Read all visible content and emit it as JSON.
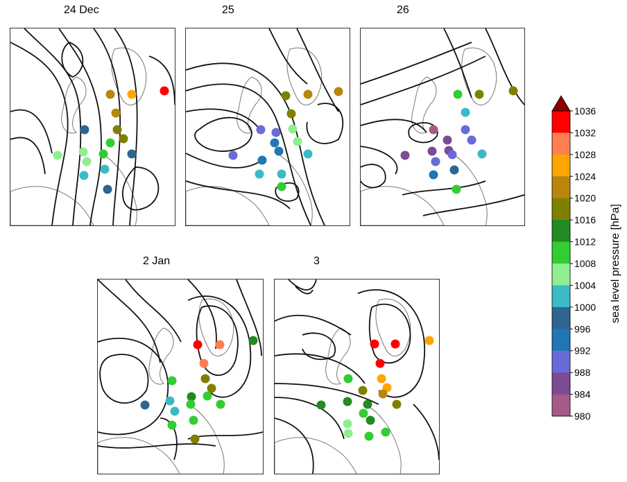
{
  "panels": [
    {
      "title": "24 Dec",
      "stations": [
        {
          "v": 1024
        },
        {
          "v": 1028
        },
        {
          "v": 1036
        },
        {
          "v": 1024
        },
        {
          "v": 1000
        },
        {
          "v": 1020
        },
        {
          "v": 1020
        },
        {
          "v": 1012
        },
        {
          "v": 1008
        },
        {
          "v": 1012
        },
        {
          "v": 1008
        },
        {
          "v": 1000
        },
        {
          "v": 1008
        },
        {
          "v": 1004
        },
        {
          "v": 1004
        },
        {
          "v": 1000
        }
      ]
    },
    {
      "title": "25",
      "stations": [
        {
          "v": 1020
        },
        {
          "v": 1024
        },
        {
          "v": 1024
        },
        {
          "v": 1020
        },
        {
          "v": 992
        },
        {
          "v": 1008
        },
        {
          "v": 992
        },
        {
          "v": 1008
        },
        {
          "v": 996
        },
        {
          "v": 996
        },
        {
          "v": 996
        },
        {
          "v": 992
        },
        {
          "v": 1004
        },
        {
          "v": 1004
        },
        {
          "v": 1004
        },
        {
          "v": 1012
        }
      ]
    },
    {
      "title": "26",
      "stations": [
        {
          "v": 1012
        },
        {
          "v": 1020
        },
        {
          "v": 1020
        },
        {
          "v": 1004
        },
        {
          "v": 984
        },
        {
          "v": 992
        },
        {
          "v": 992
        },
        {
          "v": 988
        },
        {
          "v": 988
        },
        {
          "v": 988
        },
        {
          "v": 988
        },
        {
          "v": 992
        },
        {
          "v": 1004
        },
        {
          "v": 992
        },
        {
          "v": 1000
        },
        {
          "v": 1012
        },
        {
          "v": 996
        }
      ]
    },
    {
      "title": "2 Jan",
      "stations": [
        {
          "v": 1036
        },
        {
          "v": 1032
        },
        {
          "v": 1016
        },
        {
          "v": 1032
        },
        {
          "v": 1020
        },
        {
          "v": 1012
        },
        {
          "v": 1020
        },
        {
          "v": 1012
        },
        {
          "v": 1016
        },
        {
          "v": 1000
        },
        {
          "v": 1004
        },
        {
          "v": 1012
        },
        {
          "v": 1004
        },
        {
          "v": 1012
        },
        {
          "v": 1012
        },
        {
          "v": 1012
        },
        {
          "v": 1020
        }
      ]
    },
    {
      "title": "3",
      "stations": [
        {
          "v": 1036
        },
        {
          "v": 1036
        },
        {
          "v": 1028
        },
        {
          "v": 1036
        },
        {
          "v": 1028
        },
        {
          "v": 1028
        },
        {
          "v": 1024
        },
        {
          "v": 1012
        },
        {
          "v": 1020
        },
        {
          "v": 1020
        },
        {
          "v": 1016
        },
        {
          "v": 1016
        },
        {
          "v": 1016
        },
        {
          "v": 1008
        },
        {
          "v": 1016
        },
        {
          "v": 1012
        },
        {
          "v": 1012
        },
        {
          "v": 1008
        },
        {
          "v": 1012
        }
      ]
    }
  ],
  "colorbar": {
    "title": "sea level pressure [hPa]",
    "ticks": [
      "1036",
      "1032",
      "1028",
      "1024",
      "1020",
      "1016",
      "1012",
      "1008",
      "1004",
      "1000",
      "996",
      "992",
      "988",
      "984",
      "980"
    ],
    "colors": [
      {
        "min": 1032,
        "max": 1036,
        "hex": "#ff0000"
      },
      {
        "min": 1028,
        "max": 1032,
        "hex": "#ff7f50"
      },
      {
        "min": 1024,
        "max": 1028,
        "hex": "#ffa500"
      },
      {
        "min": 1020,
        "max": 1024,
        "hex": "#b8860b"
      },
      {
        "min": 1016,
        "max": 1020,
        "hex": "#808000"
      },
      {
        "min": 1012,
        "max": 1016,
        "hex": "#228b22"
      },
      {
        "min": 1008,
        "max": 1012,
        "hex": "#32cd32"
      },
      {
        "min": 1004,
        "max": 1008,
        "hex": "#90ee90"
      },
      {
        "min": 1000,
        "max": 1004,
        "hex": "#3bbac6"
      },
      {
        "min": 996,
        "max": 1000,
        "hex": "#2e6591"
      },
      {
        "min": 992,
        "max": 996,
        "hex": "#1f77b4"
      },
      {
        "min": 988,
        "max": 992,
        "hex": "#6a6bd8"
      },
      {
        "min": 984,
        "max": 988,
        "hex": "#7b4b96"
      },
      {
        "min": 980,
        "max": 984,
        "hex": "#a55a87"
      }
    ],
    "extend_top_hex": "#8b0000"
  }
}
